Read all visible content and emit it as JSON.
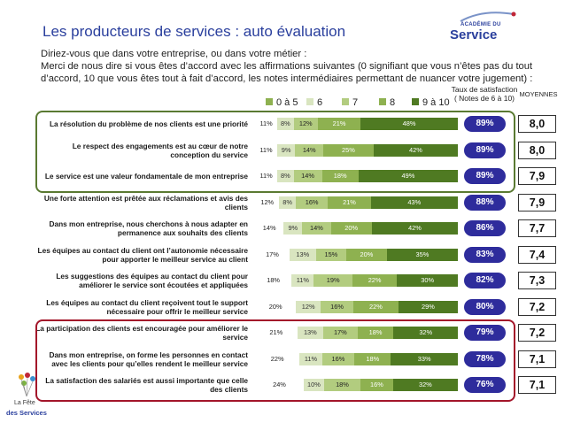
{
  "title": "Les producteurs de services : auto évaluation",
  "question": {
    "line1": "Diriez-vous que dans votre entreprise, ou dans votre métier :",
    "line2": "Merci de nous dire si vous êtes d’accord avec les affirmations suivantes (0 signifiant que vous n’êtes pas du tout d’accord, 10 que vous êtes tout à fait d’accord, les notes intermédiaires permettant de nuancer votre jugement) :"
  },
  "logo": {
    "top": "ACADÉMIE DU",
    "main": "Service"
  },
  "footer_logo": {
    "line1": "La Fête",
    "line2": "des Services"
  },
  "headers": {
    "taux": "Taux de satisfaction",
    "taux_note": "( Notes de 6 à 10)",
    "moyennes": "MOYENNES"
  },
  "colors": {
    "title": "#2a3f9d",
    "pill": "#2e2c9c",
    "box_green": "#5a7a32",
    "box_red": "#a3152a",
    "segments": [
      "#ffffff",
      "#d9e5c0",
      "#b2cc7f",
      "#8eb150",
      "#6a9434",
      "#4f7a22"
    ]
  },
  "chart_data": {
    "type": "bar",
    "orientation": "horizontal-stacked-100",
    "legend": [
      "0 à 5",
      "6",
      "7",
      "8",
      "9 à 10"
    ],
    "categories": [
      "La résolution du problème de nos clients est une priorité",
      "Le respect des engagements est au cœur de notre conception du service",
      "Le service est une valeur fondamentale de mon entreprise",
      "Une forte attention est prêtée aux réclamations et avis des clients",
      "Dans mon entreprise, nous cherchons à nous adapter en permanence aux souhaits des clients",
      "Les équipes au contact du client ont l’autonomie nécessaire pour apporter le meilleur service au client",
      "Les suggestions des équipes au contact du client pour améliorer le service sont écoutées et appliquées",
      "Les équipes au contact du client reçoivent tout le support nécessaire pour offrir le meilleur service",
      "La participation des clients est encouragée pour améliorer le service",
      "Dans mon entreprise, on forme les personnes en contact avec les clients pour qu’elles rendent le meilleur service",
      "La satisfaction des salariés est aussi importante que celle des clients"
    ],
    "series": [
      {
        "name": "0 à 5",
        "values": [
          11,
          11,
          11,
          12,
          14,
          17,
          18,
          20,
          21,
          22,
          24
        ]
      },
      {
        "name": "6",
        "values": [
          8,
          9,
          8,
          8,
          9,
          13,
          11,
          12,
          13,
          11,
          10
        ]
      },
      {
        "name": "7",
        "values": [
          12,
          14,
          14,
          16,
          14,
          15,
          19,
          16,
          17,
          16,
          18
        ]
      },
      {
        "name": "8",
        "values": [
          21,
          25,
          18,
          21,
          20,
          20,
          22,
          22,
          18,
          18,
          16
        ]
      },
      {
        "name": "9 à 10",
        "values": [
          48,
          42,
          49,
          43,
          42,
          35,
          30,
          29,
          32,
          33,
          32
        ]
      }
    ],
    "labels": [
      [
        "11%",
        "8%",
        "12%",
        "21%",
        "48%"
      ],
      [
        "11%",
        "9%",
        "14%",
        "25%",
        "42%"
      ],
      [
        "11%",
        "8%",
        "14%",
        "18%",
        "49%"
      ],
      [
        "12%",
        "8%",
        "16%",
        "21%",
        "43%"
      ],
      [
        "14%",
        "9%",
        "14%",
        "20%",
        "42%"
      ],
      [
        "17%",
        "13%",
        "15%",
        "20%",
        "35%"
      ],
      [
        "18%",
        "11%",
        "19%",
        "22%",
        "30%"
      ],
      [
        "20%",
        "12%",
        "16%",
        "22%",
        "29%"
      ],
      [
        "21%",
        "13%",
        "17%",
        "18%",
        "32%"
      ],
      [
        "22%",
        "11%",
        "16%",
        "18%",
        "33%"
      ],
      [
        "24%",
        "10%",
        "18%",
        "16%",
        "32%"
      ]
    ],
    "satisfaction": [
      "89%",
      "89%",
      "89%",
      "88%",
      "86%",
      "83%",
      "82%",
      "80%",
      "79%",
      "78%",
      "76%"
    ],
    "moyennes": [
      "8,0",
      "8,0",
      "7,9",
      "7,9",
      "7,7",
      "7,4",
      "7,3",
      "7,2",
      "7,2",
      "7,1",
      "7,1"
    ],
    "groups": [
      {
        "rows": [
          0,
          1,
          2
        ],
        "color": "green"
      },
      {
        "rows": [
          8,
          9,
          10
        ],
        "color": "red"
      }
    ]
  }
}
